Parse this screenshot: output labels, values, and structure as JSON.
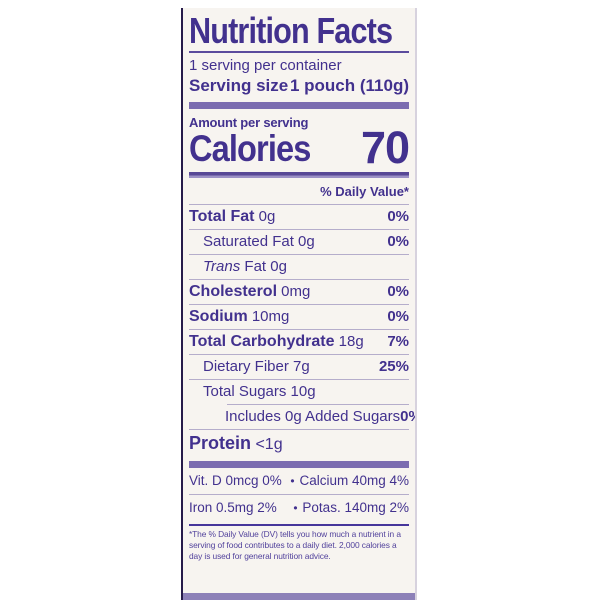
{
  "label": {
    "title": "Nutrition Facts",
    "servings_per_container": "1 serving per container",
    "serving_size_label": "Serving size",
    "serving_size_value": "1 pouch (110g)",
    "amount_per_serving": "Amount per serving",
    "calories_label": "Calories",
    "calories_value": "70",
    "daily_value_header": "% Daily Value*",
    "rows": [
      {
        "name": "Total Fat",
        "value": "0g",
        "pct": "0%",
        "bold": true,
        "indent": 0
      },
      {
        "name": "Saturated Fat",
        "value": "0g",
        "pct": "0%",
        "bold": false,
        "indent": 1
      },
      {
        "name": "Fat",
        "value": "0g",
        "pct": "",
        "bold": false,
        "indent": 1,
        "italic_prefix": "Trans"
      },
      {
        "name": "Cholesterol",
        "value": "0mg",
        "pct": "0%",
        "bold": true,
        "indent": 0
      },
      {
        "name": "Sodium",
        "value": "10mg",
        "pct": "0%",
        "bold": true,
        "indent": 0
      },
      {
        "name": "Total Carbohydrate",
        "value": "18g",
        "pct": "7%",
        "bold": true,
        "indent": 0
      },
      {
        "name": "Dietary Fiber",
        "value": "7g",
        "pct": "25%",
        "bold": false,
        "indent": 1
      },
      {
        "name": "Total Sugars",
        "value": "10g",
        "pct": "",
        "bold": false,
        "indent": 1
      },
      {
        "name": "Includes 0g Added Sugars",
        "value": "",
        "pct": "0%",
        "bold": false,
        "indent": 2,
        "rule_indented": true
      },
      {
        "name": "Protein",
        "value": "<1g",
        "pct": "",
        "bold": true,
        "indent": 0,
        "large": true
      }
    ],
    "micronutrients": [
      {
        "left": "Vit. D 0mcg 0%",
        "bullet": "•",
        "right": "Calcium 40mg 4%"
      },
      {
        "left": "Iron 0.5mg 2%",
        "bullet": "•",
        "right": "Potas. 140mg 2%"
      }
    ],
    "footnote": "*The % Daily Value (DV) tells you how much a nutrient in a serving of food contributes to a daily diet. 2,000 calories a day is used for general nutrition advice.",
    "colors": {
      "text": "#42318e",
      "thick_bar": "#7b6cb0",
      "thin_rule": "#b5adcb",
      "dark_rule": "#5b4b9d",
      "darker_rule": "#46369b",
      "label_background": "#f7f4f0",
      "left_border": "#261b4a",
      "page_background": "#ffffff"
    }
  }
}
